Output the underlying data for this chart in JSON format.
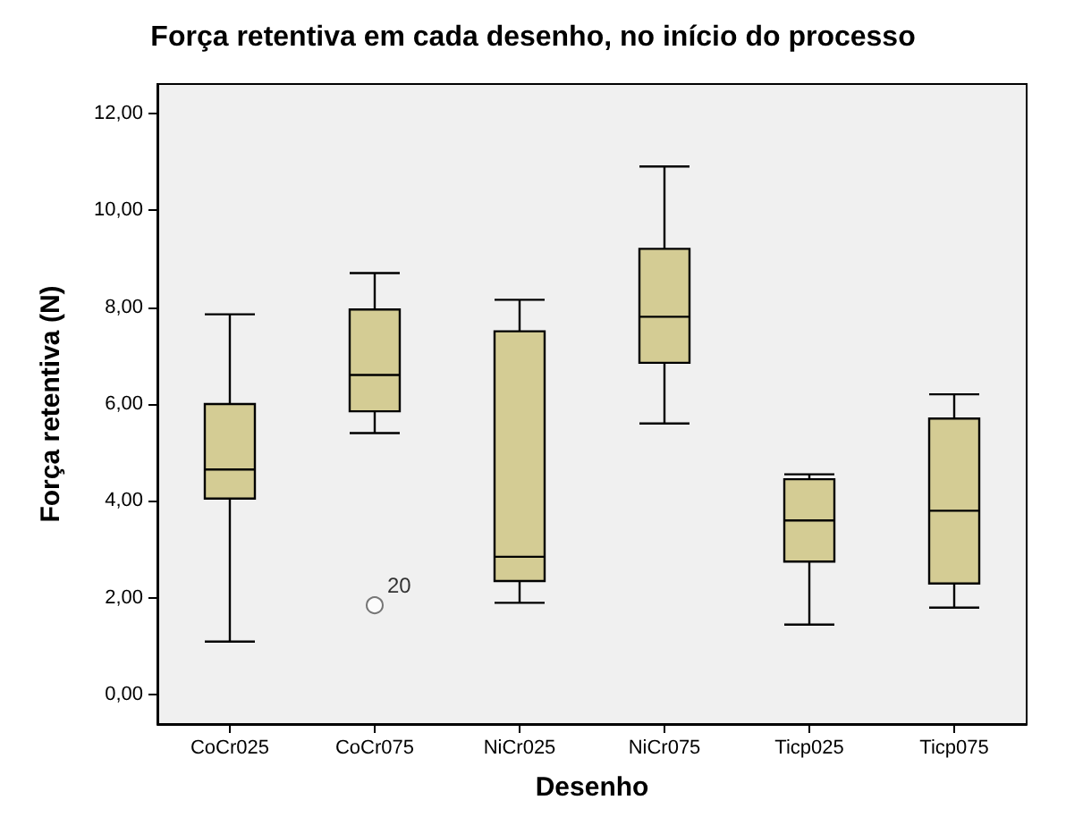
{
  "chart_data": {
    "type": "box",
    "title": "Força retentiva em cada desenho, no início do processo",
    "xlabel": "Desenho",
    "ylabel": "Força retentiva (N)",
    "categories": [
      "CoCr025",
      "CoCr075",
      "NiCr025",
      "NiCr075",
      "Ticp025",
      "Ticp075"
    ],
    "color": "#d4cc94",
    "boxes": [
      {
        "low": 1.1,
        "q1": 4.05,
        "median": 4.65,
        "q3": 6.0,
        "high": 7.85
      },
      {
        "low": 5.4,
        "q1": 5.85,
        "median": 6.6,
        "q3": 7.95,
        "high": 8.7,
        "outliers": [
          1.85
        ]
      },
      {
        "low": 1.9,
        "q1": 2.35,
        "median": 2.85,
        "q3": 7.5,
        "high": 8.15
      },
      {
        "low": 5.6,
        "q1": 6.85,
        "median": 7.8,
        "q3": 9.2,
        "high": 10.9
      },
      {
        "low": 1.45,
        "q1": 2.75,
        "median": 3.6,
        "q3": 4.45,
        "high": 4.55
      },
      {
        "low": 1.8,
        "q1": 2.3,
        "median": 3.8,
        "q3": 5.7,
        "high": 6.2
      }
    ],
    "ylim": [
      -0.6,
      12.6
    ],
    "yticks": [
      {
        "value": 0,
        "label": "0,00"
      },
      {
        "value": 2,
        "label": "2,00"
      },
      {
        "value": 4,
        "label": "4,00"
      },
      {
        "value": 6,
        "label": "6,00"
      },
      {
        "value": 8,
        "label": "8,00"
      },
      {
        "value": 10,
        "label": "10,00"
      },
      {
        "value": 12,
        "label": "12,00"
      }
    ],
    "annotations": [
      "20"
    ],
    "grid": false
  }
}
